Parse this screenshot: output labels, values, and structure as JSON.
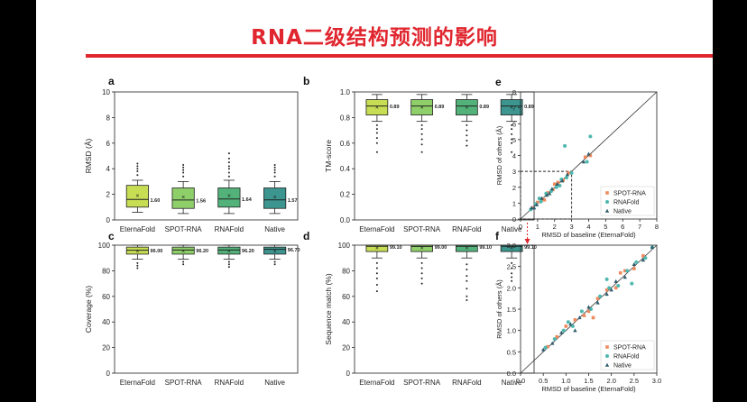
{
  "slide": {
    "title": "RNA二级结构预测的影响",
    "accent_color": "#e0262e",
    "page_background": "#000000"
  },
  "chart_data": [
    {
      "panel": "a",
      "type": "box",
      "categories": [
        "EternaFold",
        "SPOT-RNA",
        "RNAFold",
        "Native"
      ],
      "ylabel": "RMSD (Å)",
      "ylim": [
        0,
        10
      ],
      "yticks": [
        0,
        2,
        4,
        6,
        8,
        10
      ],
      "colors": [
        "#c7dd54",
        "#8fcf6a",
        "#52b27a",
        "#3c968f"
      ],
      "boxes": [
        {
          "whisker_low": 0.6,
          "q1": 1.0,
          "median": 1.6,
          "q3": 2.7,
          "whisker_high": 3.1,
          "mean": 1.9,
          "label": "1.60",
          "outliers": [
            3.5,
            3.8,
            4.0,
            4.2,
            4.4
          ]
        },
        {
          "whisker_low": 0.5,
          "q1": 0.9,
          "median": 1.56,
          "q3": 2.5,
          "whisker_high": 3.0,
          "mean": 1.8,
          "label": "1.56",
          "outliers": [
            3.4,
            3.7,
            3.9,
            4.1,
            4.3
          ]
        },
        {
          "whisker_low": 0.5,
          "q1": 1.0,
          "median": 1.64,
          "q3": 2.5,
          "whisker_high": 3.1,
          "mean": 1.9,
          "label": "1.64",
          "outliers": [
            3.4,
            3.7,
            4.0,
            4.2,
            4.5,
            4.8,
            5.2
          ]
        },
        {
          "whisker_low": 0.5,
          "q1": 0.9,
          "median": 1.57,
          "q3": 2.5,
          "whisker_high": 3.0,
          "mean": 1.8,
          "label": "1.57",
          "outliers": [
            3.4,
            3.7,
            3.9,
            4.1,
            4.3
          ]
        }
      ]
    },
    {
      "panel": "b",
      "type": "box",
      "categories": [
        "EternaFold",
        "SPOT-RNA",
        "RNAFold",
        "Native"
      ],
      "ylabel": "TM-score",
      "ylim": [
        0,
        1.0
      ],
      "yticks": [
        0.0,
        0.2,
        0.4,
        0.6,
        0.8,
        1.0
      ],
      "colors": [
        "#c7dd54",
        "#8fcf6a",
        "#52b27a",
        "#3c968f"
      ],
      "boxes": [
        {
          "whisker_low": 0.77,
          "q1": 0.82,
          "median": 0.89,
          "q3": 0.94,
          "whisker_high": 0.98,
          "mean": 0.88,
          "label": "0.89",
          "outliers": [
            0.74,
            0.71,
            0.68,
            0.64,
            0.6,
            0.53
          ]
        },
        {
          "whisker_low": 0.77,
          "q1": 0.82,
          "median": 0.89,
          "q3": 0.94,
          "whisker_high": 0.98,
          "mean": 0.88,
          "label": "0.89",
          "outliers": [
            0.74,
            0.71,
            0.67,
            0.63,
            0.59,
            0.53
          ]
        },
        {
          "whisker_low": 0.77,
          "q1": 0.82,
          "median": 0.89,
          "q3": 0.94,
          "whisker_high": 0.98,
          "mean": 0.88,
          "label": "0.89",
          "outliers": [
            0.74,
            0.7,
            0.66,
            0.62,
            0.58
          ]
        },
        {
          "whisker_low": 0.77,
          "q1": 0.82,
          "median": 0.89,
          "q3": 0.94,
          "whisker_high": 0.98,
          "mean": 0.88,
          "label": "0.89",
          "outliers": [
            0.74,
            0.71,
            0.67,
            0.63,
            0.6,
            0.53
          ]
        }
      ]
    },
    {
      "panel": "c",
      "type": "box",
      "categories": [
        "EternaFold",
        "SPOT-RNA",
        "RNAFold",
        "Native"
      ],
      "ylabel": "Coverage (%)",
      "ylim": [
        0,
        100
      ],
      "yticks": [
        0,
        20,
        40,
        60,
        80,
        100
      ],
      "colors": [
        "#c7dd54",
        "#8fcf6a",
        "#52b27a",
        "#3c968f"
      ],
      "boxes": [
        {
          "whisker_low": 89,
          "q1": 93,
          "median": 96.0,
          "q3": 98.5,
          "whisker_high": 100,
          "mean": 95.5,
          "label": "96.00",
          "outliers": [
            86,
            84,
            82
          ]
        },
        {
          "whisker_low": 89,
          "q1": 93,
          "median": 96.2,
          "q3": 98.5,
          "whisker_high": 100,
          "mean": 95.5,
          "label": "96.20",
          "outliers": [
            87,
            85
          ]
        },
        {
          "whisker_low": 89,
          "q1": 93,
          "median": 96.2,
          "q3": 98.5,
          "whisker_high": 100,
          "mean": 95.5,
          "label": "96.20",
          "outliers": [
            87,
            85,
            83
          ]
        },
        {
          "whisker_low": 89,
          "q1": 93,
          "median": 96.7,
          "q3": 98.5,
          "whisker_high": 100,
          "mean": 95.5,
          "label": "96.70",
          "outliers": [
            87,
            85
          ]
        }
      ]
    },
    {
      "panel": "d",
      "type": "box",
      "categories": [
        "EternaFold",
        "SPOT-RNA",
        "RNAFold",
        "Native"
      ],
      "ylabel": "Sequence match (%)",
      "ylim": [
        0,
        100
      ],
      "yticks": [
        0,
        20,
        40,
        60,
        80,
        100
      ],
      "colors": [
        "#c7dd54",
        "#8fcf6a",
        "#52b27a",
        "#3c968f"
      ],
      "boxes": [
        {
          "whisker_low": 90,
          "q1": 95,
          "median": 99.1,
          "q3": 100,
          "whisker_high": 100,
          "mean": 98,
          "label": "99.10",
          "outliers": [
            86,
            82,
            78,
            74,
            69,
            64
          ]
        },
        {
          "whisker_low": 90,
          "q1": 95,
          "median": 99.0,
          "q3": 100,
          "whisker_high": 100,
          "mean": 98,
          "label": "99.00",
          "outliers": [
            86,
            82,
            78,
            74,
            70
          ]
        },
        {
          "whisker_low": 90,
          "q1": 95,
          "median": 99.1,
          "q3": 100,
          "whisker_high": 100,
          "mean": 98,
          "label": "99.10",
          "outliers": [
            85,
            81,
            76,
            72,
            66,
            60,
            57
          ]
        },
        {
          "whisker_low": 90,
          "q1": 95,
          "median": 99.1,
          "q3": 100,
          "whisker_high": 100,
          "mean": 98,
          "label": "99.10",
          "outliers": [
            86,
            82,
            78,
            75,
            72
          ]
        }
      ]
    },
    {
      "panel": "e",
      "type": "scatter",
      "xlabel": "RMSD of baseline (EternaFold)",
      "ylabel": "RMSD of others (Å)",
      "xlim": [
        0,
        8
      ],
      "ylim": [
        0,
        8
      ],
      "xticks": [
        0,
        1,
        2,
        3,
        4,
        5,
        6,
        7,
        8
      ],
      "yticks": [
        0,
        1,
        2,
        3,
        4,
        5,
        6,
        7,
        8
      ],
      "legend_position": "bottom-right",
      "zoom_box": [
        0,
        3,
        0,
        3
      ],
      "series": [
        {
          "name": "SPOT-RNA",
          "color": "#f08a5d",
          "marker": "square",
          "points": [
            [
              0.7,
              0.7
            ],
            [
              1.0,
              1.05
            ],
            [
              1.3,
              1.25
            ],
            [
              1.6,
              1.65
            ],
            [
              1.9,
              1.85
            ],
            [
              2.2,
              2.3
            ],
            [
              2.5,
              2.45
            ],
            [
              2.8,
              2.9
            ],
            [
              1.4,
              1.2
            ],
            [
              2.0,
              2.2
            ],
            [
              3.8,
              3.9
            ],
            [
              4.1,
              4.0
            ]
          ]
        },
        {
          "name": "RNAFold",
          "color": "#4fb8ae",
          "marker": "circle",
          "points": [
            [
              0.6,
              0.6
            ],
            [
              0.9,
              0.95
            ],
            [
              1.2,
              1.1
            ],
            [
              1.5,
              1.6
            ],
            [
              1.8,
              1.75
            ],
            [
              2.1,
              2.0
            ],
            [
              2.4,
              2.5
            ],
            [
              2.7,
              2.6
            ],
            [
              3.0,
              2.9
            ],
            [
              2.6,
              4.6
            ],
            [
              4.1,
              5.2
            ],
            [
              3.9,
              3.6
            ],
            [
              1.1,
              1.3
            ],
            [
              2.3,
              2.1
            ]
          ]
        },
        {
          "name": "Native",
          "color": "#2f5a6b",
          "marker": "triangle",
          "points": [
            [
              0.65,
              0.7
            ],
            [
              0.95,
              0.9
            ],
            [
              1.25,
              1.3
            ],
            [
              1.55,
              1.5
            ],
            [
              1.85,
              1.9
            ],
            [
              2.15,
              2.2
            ],
            [
              2.45,
              2.4
            ],
            [
              2.75,
              2.8
            ],
            [
              0.8,
              0.7
            ],
            [
              1.7,
              1.6
            ],
            [
              4.0,
              4.1
            ],
            [
              3.7,
              3.6
            ]
          ]
        }
      ]
    },
    {
      "panel": "f",
      "type": "scatter",
      "xlabel": "RMSD of baseline (EternaFold)",
      "ylabel": "RMSD of others (Å)",
      "xlim": [
        0,
        3.0
      ],
      "ylim": [
        0,
        3.0
      ],
      "xticks": [
        0.0,
        0.5,
        1.0,
        1.5,
        2.0,
        2.5,
        3.0
      ],
      "yticks": [
        0.0,
        0.5,
        1.0,
        1.5,
        2.0,
        2.5,
        3.0
      ],
      "legend_position": "bottom-right",
      "series": [
        {
          "name": "SPOT-RNA",
          "color": "#f08a5d",
          "marker": "square",
          "points": [
            [
              0.6,
              0.62
            ],
            [
              0.8,
              0.85
            ],
            [
              1.0,
              1.1
            ],
            [
              1.2,
              1.25
            ],
            [
              1.4,
              1.35
            ],
            [
              1.5,
              1.45
            ],
            [
              1.7,
              1.75
            ],
            [
              1.9,
              1.95
            ],
            [
              2.1,
              2.0
            ],
            [
              2.3,
              2.4
            ],
            [
              2.5,
              2.45
            ],
            [
              2.7,
              2.75
            ],
            [
              1.6,
              1.3
            ],
            [
              2.2,
              2.35
            ]
          ]
        },
        {
          "name": "RNAFold",
          "color": "#4fb8ae",
          "marker": "circle",
          "points": [
            [
              0.55,
              0.6
            ],
            [
              0.75,
              0.8
            ],
            [
              0.95,
              1.0
            ],
            [
              1.15,
              1.1
            ],
            [
              1.35,
              1.45
            ],
            [
              1.55,
              1.5
            ],
            [
              1.75,
              1.8
            ],
            [
              1.95,
              2.0
            ],
            [
              2.15,
              2.05
            ],
            [
              2.35,
              2.4
            ],
            [
              2.55,
              2.6
            ],
            [
              2.75,
              2.7
            ],
            [
              2.9,
              2.95
            ],
            [
              1.05,
              1.2
            ],
            [
              1.9,
              2.2
            ],
            [
              2.45,
              2.1
            ]
          ]
        },
        {
          "name": "Native",
          "color": "#2f5a6b",
          "marker": "triangle",
          "points": [
            [
              0.5,
              0.55
            ],
            [
              0.7,
              0.7
            ],
            [
              0.9,
              0.95
            ],
            [
              1.1,
              1.15
            ],
            [
              1.3,
              1.3
            ],
            [
              1.5,
              1.55
            ],
            [
              1.7,
              1.65
            ],
            [
              1.9,
              1.85
            ],
            [
              2.1,
              2.15
            ],
            [
              2.3,
              2.25
            ],
            [
              2.5,
              2.55
            ],
            [
              2.7,
              2.65
            ],
            [
              2.9,
              2.95
            ],
            [
              1.2,
              1.0
            ],
            [
              2.0,
              1.95
            ]
          ]
        }
      ]
    }
  ]
}
